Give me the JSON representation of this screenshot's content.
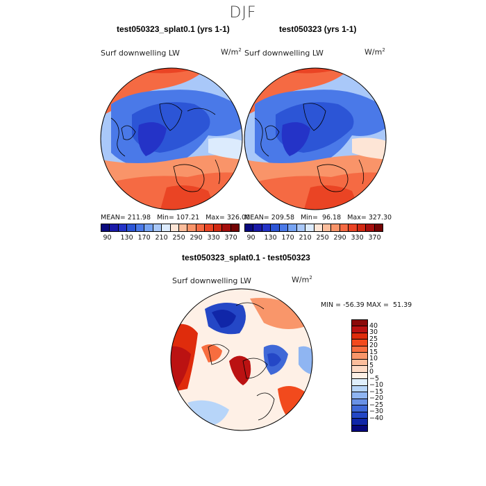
{
  "page_title": "DJF",
  "panels": [
    {
      "title": "test050323_splat0.1 (yrs 1-1)",
      "variable": "Surf downwelling LW",
      "units_base": "W/m",
      "units_exp": "2",
      "stats": "MEAN= 211.98   Min= 107.21   Max= 326.00"
    },
    {
      "title": "test050323 (yrs 1-1)",
      "variable": "Surf downwelling LW",
      "units_base": "W/m",
      "units_exp": "2",
      "stats": "MEAN= 209.58   Min=  96.18   Max= 327.30"
    },
    {
      "title": "test050323_splat0.1 - test050323",
      "variable": "Surf downwelling LW",
      "units_base": "W/m",
      "units_exp": "2",
      "stats": "MIN = -56.39 MAX =  51.39"
    }
  ],
  "colorbar_abs": {
    "colors": [
      "#0a0a7e",
      "#1a1aa8",
      "#2433c7",
      "#2c55d6",
      "#4a79e8",
      "#76a3f3",
      "#a9c8f9",
      "#dcebfd",
      "#fde5d6",
      "#fbbd9c",
      "#f99469",
      "#f56a43",
      "#ea4424",
      "#d12912",
      "#a50f0d",
      "#730303"
    ],
    "tick_labels": [
      "90",
      "130",
      "170",
      "210",
      "250",
      "290",
      "330",
      "370"
    ]
  },
  "colorbar_diff": {
    "colors_top_to_bottom": [
      "#8b0a0a",
      "#bb1212",
      "#df2c0c",
      "#f24a1d",
      "#f76d3f",
      "#f9966a",
      "#fbbd9c",
      "#fddac5",
      "#fef0e6",
      "#dfeffd",
      "#b7d5f9",
      "#8fb5f2",
      "#6991e6",
      "#3f68d7",
      "#2447c6",
      "#1026a8",
      "#07087c"
    ],
    "tick_labels_top_to_bottom": [
      "40",
      "30",
      "25",
      "20",
      "15",
      "10",
      "5",
      "0",
      "−5",
      "−10",
      "−15",
      "−20",
      "−25",
      "−30",
      "−40"
    ]
  }
}
